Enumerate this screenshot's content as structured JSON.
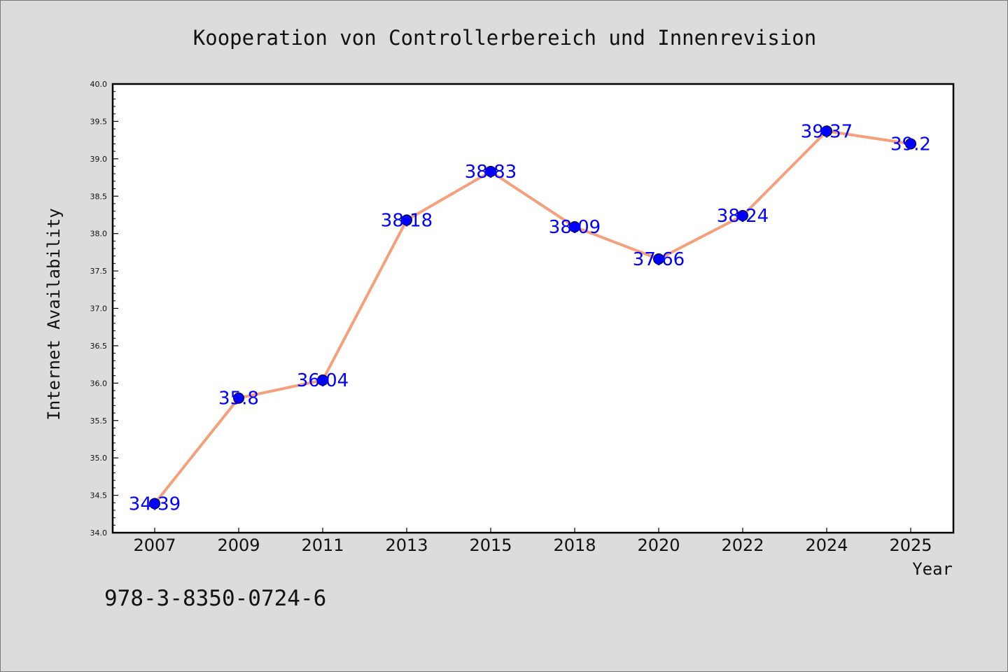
{
  "chart_data": {
    "type": "line",
    "title": "Kooperation von Controllerbereich und Innenrevision",
    "xlabel": "Year",
    "ylabel": "Internet Availability",
    "categories": [
      "2007",
      "2009",
      "2011",
      "2013",
      "2015",
      "2018",
      "2020",
      "2022",
      "2024",
      "2025"
    ],
    "series": [
      {
        "values": [
          34.39,
          35.8,
          36.04,
          38.18,
          38.83,
          38.09,
          37.66,
          38.24,
          39.37,
          39.2
        ],
        "labels": [
          "34.39",
          "35.8",
          "36.04",
          "38.18",
          "38.83",
          "38.09",
          "37.66",
          "38.24",
          "39.37",
          "39.2"
        ]
      }
    ],
    "ylim": [
      34.0,
      40.0
    ],
    "yticks": [
      "34.0",
      "34.5",
      "35.0",
      "35.5",
      "36.0",
      "36.5",
      "37.0",
      "37.5",
      "38.0",
      "38.5",
      "39.0",
      "39.5",
      "40.0"
    ],
    "grid": false,
    "legend": "none",
    "colors": {
      "line": "#f4a07c",
      "marker": "#0000ff",
      "label": "#0000ff",
      "background": "#dcdcdc",
      "plot_background": "#ffffff"
    }
  },
  "footer": {
    "isbn": "978-3-8350-0724-6"
  }
}
